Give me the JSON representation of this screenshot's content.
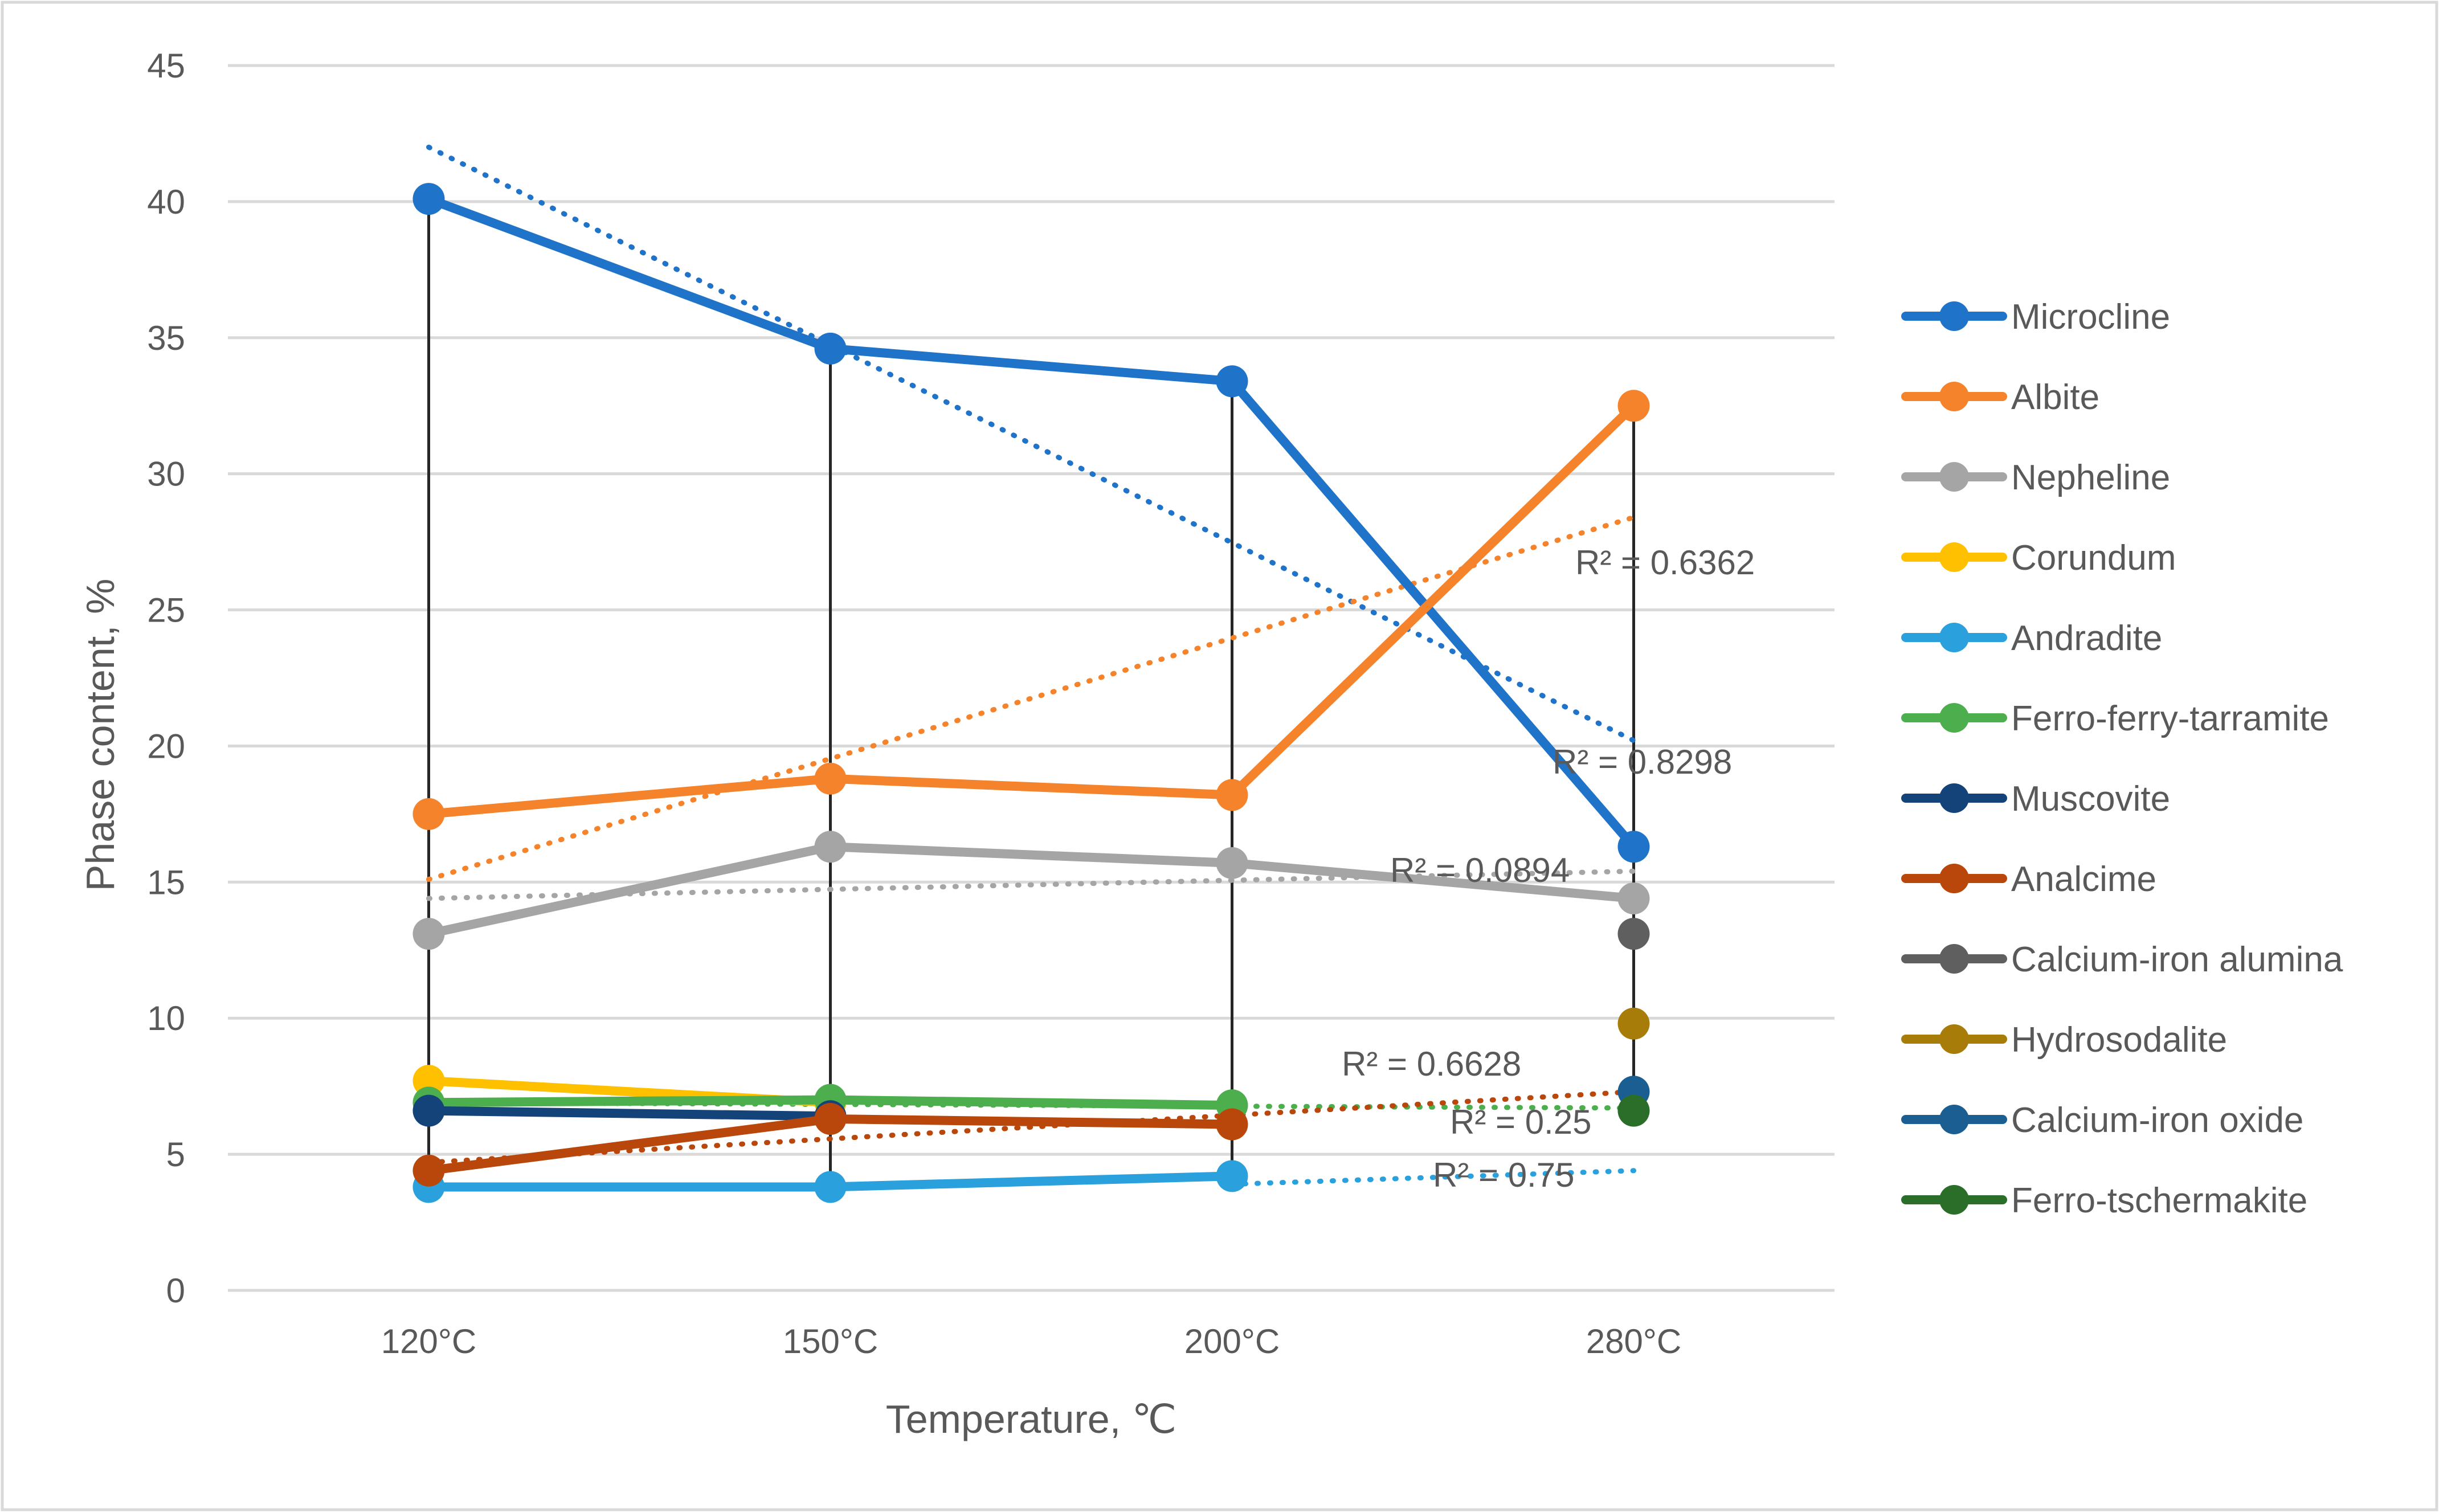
{
  "chart_data": {
    "type": "line",
    "title": "",
    "xlabel": "Temperature, ℃",
    "ylabel": "Phase content, %",
    "categories": [
      "120°C",
      "150°C",
      "200°C",
      "280°C"
    ],
    "ylim": [
      0,
      45
    ],
    "yticks": [
      0,
      5,
      10,
      15,
      20,
      25,
      30,
      35,
      40,
      45
    ],
    "grid": true,
    "legend_position": "right",
    "series": [
      {
        "name": "Microcline",
        "color": "#1f73c8",
        "values": [
          40.1,
          34.6,
          33.4,
          16.3
        ]
      },
      {
        "name": "Albite",
        "color": "#f5832b",
        "values": [
          17.5,
          18.8,
          18.2,
          32.5
        ]
      },
      {
        "name": "Nepheline",
        "color": "#a5a5a5",
        "values": [
          13.1,
          16.3,
          15.7,
          14.4
        ]
      },
      {
        "name": "Corundum",
        "color": "#ffc000",
        "values": [
          7.7,
          6.9,
          null,
          null
        ]
      },
      {
        "name": "Andradite",
        "color": "#2aa1dc",
        "values": [
          3.8,
          3.8,
          4.2,
          null
        ]
      },
      {
        "name": "Ferro-ferry-tarramite",
        "color": "#4cae4c",
        "values": [
          6.9,
          7.0,
          6.8,
          null
        ]
      },
      {
        "name": "Muscovite",
        "color": "#14437a",
        "values": [
          6.6,
          6.4,
          null,
          null
        ]
      },
      {
        "name": "Analcime",
        "color": "#b9470b",
        "values": [
          4.4,
          6.3,
          6.1,
          null
        ]
      },
      {
        "name": "Calcium-iron alumina",
        "color": "#5f5f5f",
        "values": [
          null,
          null,
          null,
          13.1
        ]
      },
      {
        "name": "Hydrosodalite",
        "color": "#a87c08",
        "values": [
          null,
          null,
          null,
          9.8
        ]
      },
      {
        "name": "Calcium-iron oxide",
        "color": "#1b5e92",
        "values": [
          null,
          null,
          null,
          7.3
        ]
      },
      {
        "name": "Ferro-tschermakite",
        "color": "#2a6e2a",
        "values": [
          null,
          null,
          null,
          6.6
        ]
      }
    ],
    "trendlines": [
      {
        "series": "Microcline",
        "color": "#1f73c8",
        "start": 42.0,
        "end": 20.2,
        "r2_label": "R² = 0.8298"
      },
      {
        "series": "Albite",
        "color": "#f5832b",
        "start": 15.1,
        "end": 28.4,
        "r2_label": "R² = 0.6362"
      },
      {
        "series": "Nepheline",
        "color": "#a5a5a5",
        "start": 14.4,
        "end": 15.4,
        "r2_label": "R² = 0.0894"
      },
      {
        "series": "Ferro-ferry-tarramite",
        "color": "#4cae4c",
        "start": 6.9,
        "end": 6.7,
        "r2_label": "R² = 0.25"
      },
      {
        "series": "Analcime",
        "color": "#b9470b",
        "start": 4.7,
        "end": 7.3,
        "r2_label": "R² = 0.6628"
      },
      {
        "series": "Andradite",
        "color": "#2aa1dc",
        "start": 3.9,
        "end": 4.4,
        "r2_label": "R² = 0.75",
        "from_index": 2
      }
    ]
  }
}
